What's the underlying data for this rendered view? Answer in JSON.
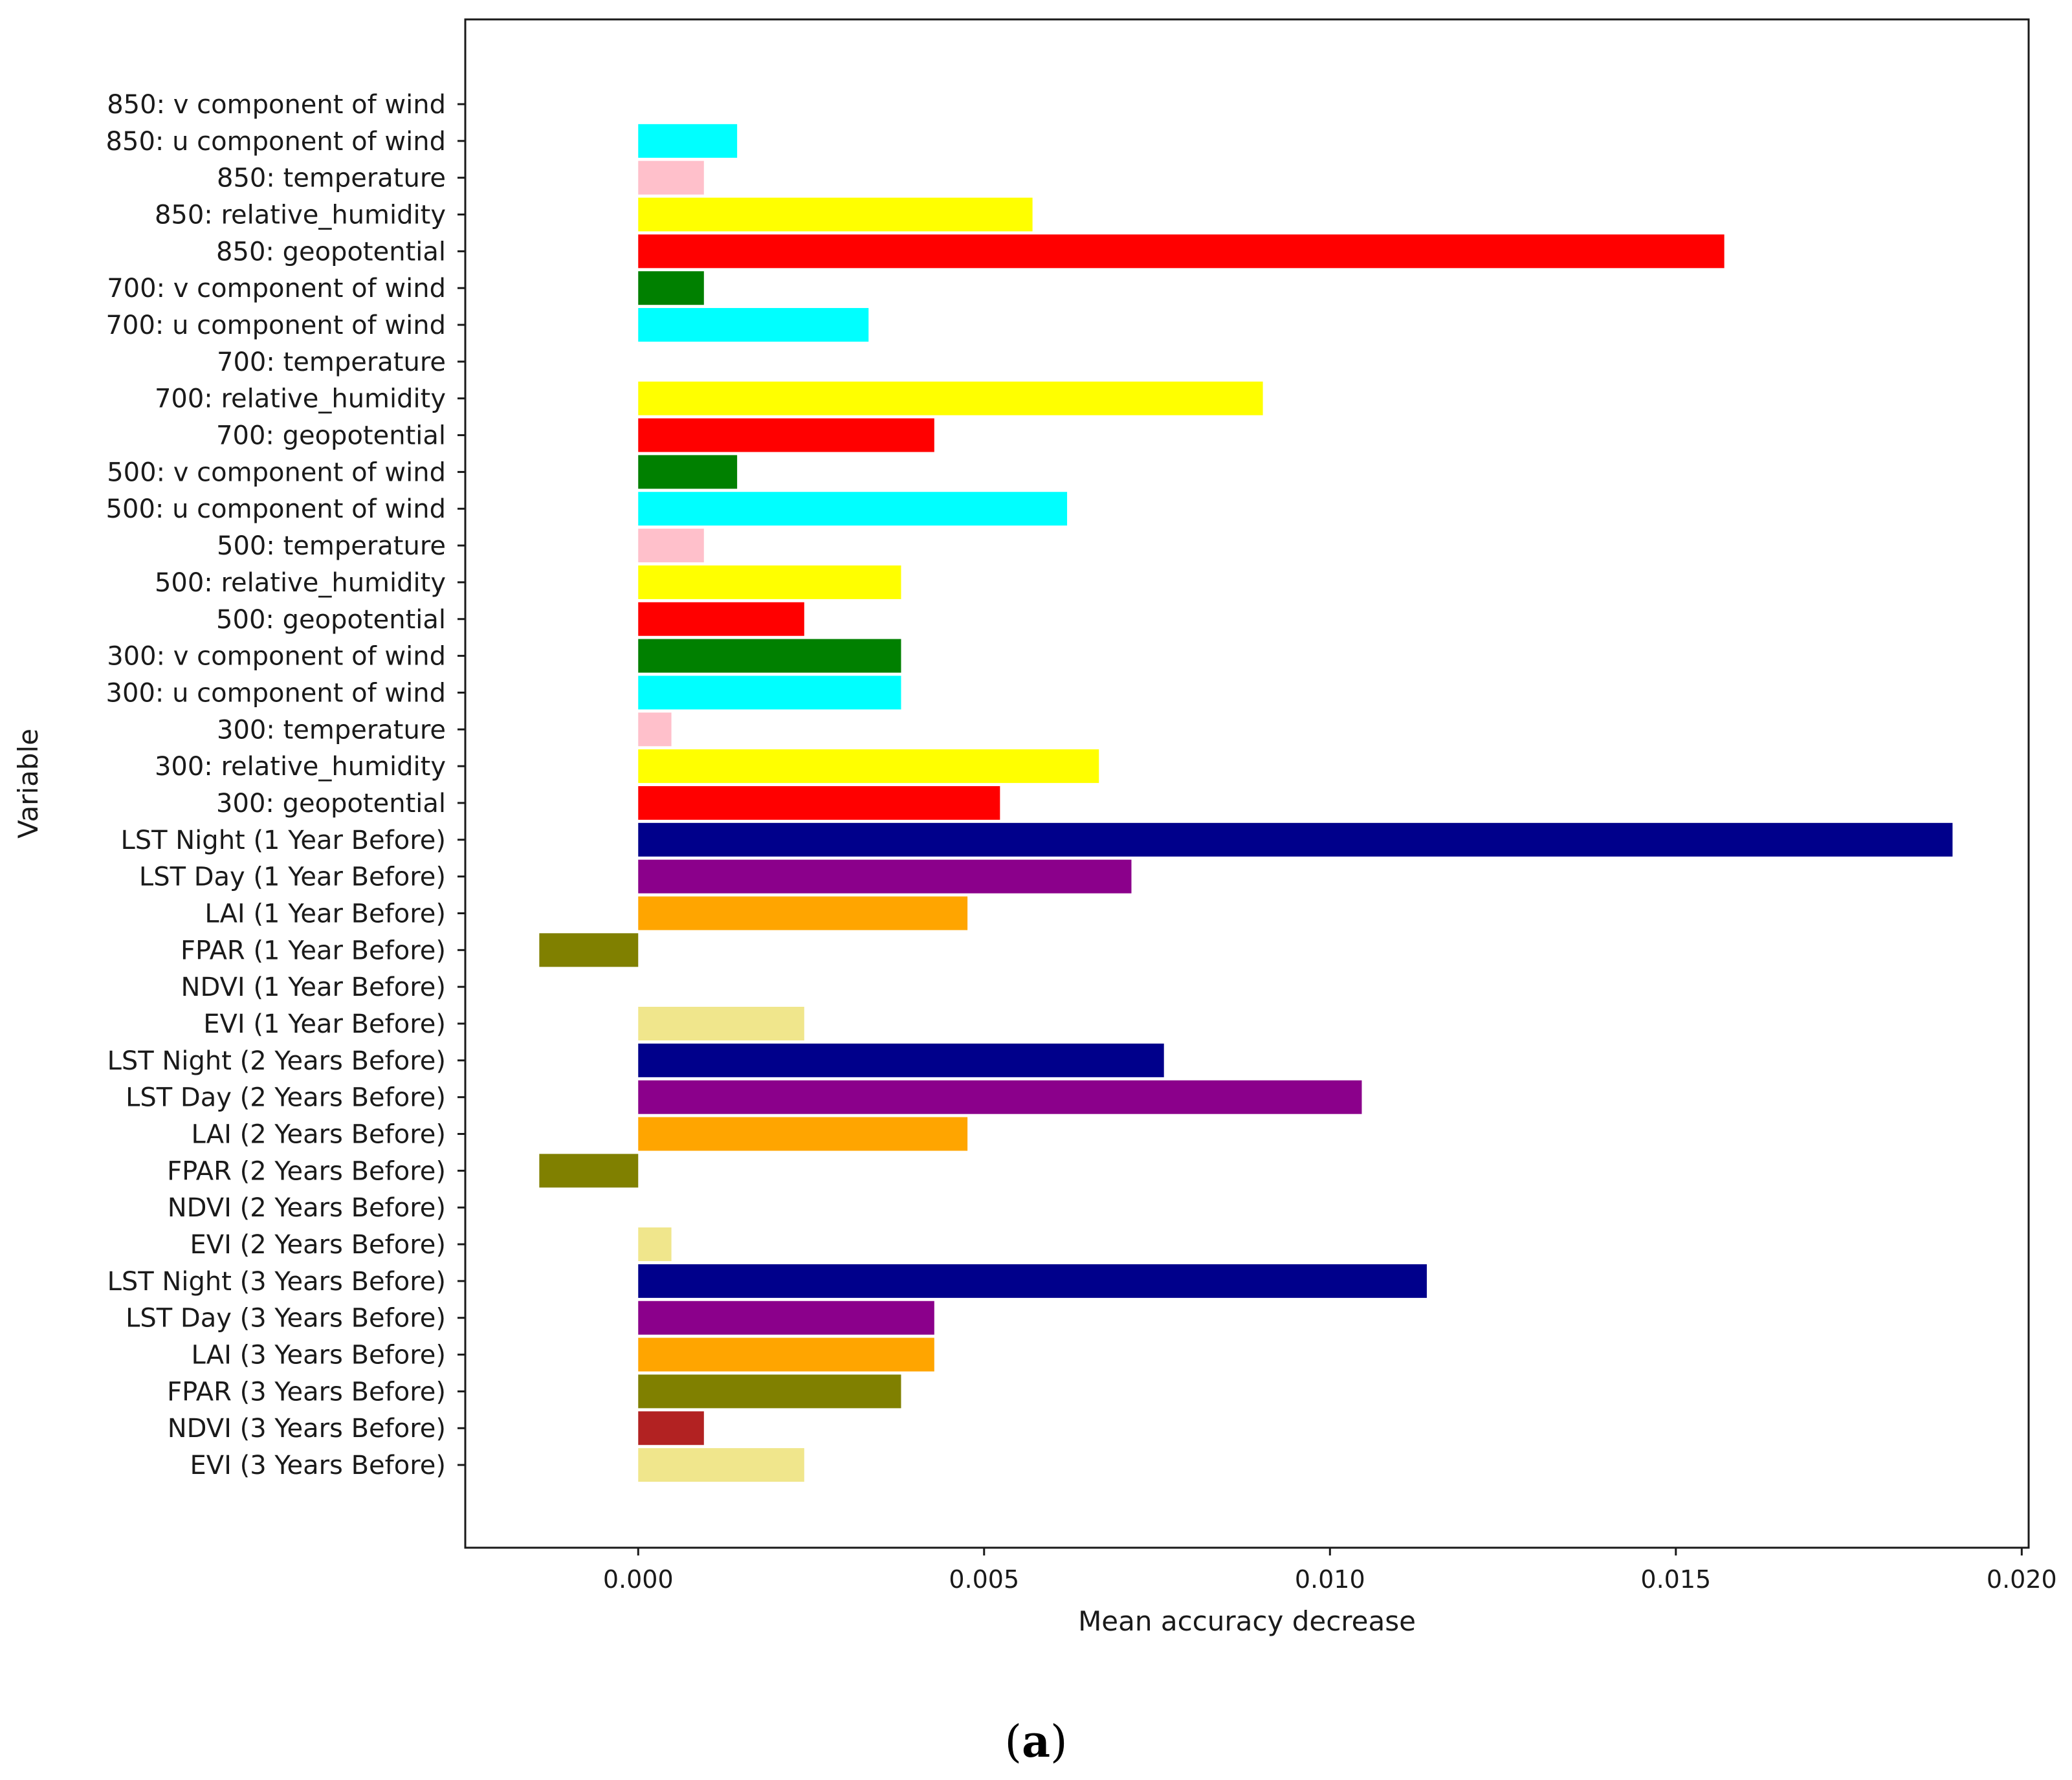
{
  "chart_data": {
    "type": "bar",
    "orientation": "horizontal",
    "title": "",
    "xlabel": "Mean accuracy decrease",
    "ylabel": "Variable",
    "xlim": [
      -0.0025,
      0.0201
    ],
    "xticks": [
      0.0,
      0.005,
      0.01,
      0.015,
      0.02
    ],
    "xtick_labels": [
      "0.000",
      "0.005",
      "0.010",
      "0.015",
      "0.020"
    ],
    "grid": false,
    "categories": [
      "850: v component of wind",
      "850: u component of wind",
      "850: temperature",
      "850: relative_humidity",
      "850: geopotential",
      "700: v component of wind",
      "700: u component of wind",
      "700: temperature",
      "700: relative_humidity",
      "700: geopotential",
      "500: v component of wind",
      "500: u component of wind",
      "500: temperature",
      "500: relative_humidity",
      "500: geopotential",
      "300: v component of wind",
      "300: u component of wind",
      "300: temperature",
      "300: relative_humidity",
      "300: geopotential",
      "LST Night (1 Year Before)",
      "LST Day (1 Year Before)",
      "LAI (1 Year Before)",
      "FPAR (1 Year Before)",
      "NDVI (1 Year Before)",
      "EVI (1 Year Before)",
      "LST Night (2 Years Before)",
      "LST Day (2 Years Before)",
      "LAI (2 Years Before)",
      "FPAR (2 Years Before)",
      "NDVI (2 Years Before)",
      "EVI (2 Years Before)",
      "LST Night (3 Years Before)",
      "LST Day (3 Years Before)",
      "LAI (3 Years Before)",
      "FPAR (3 Years Before)",
      "NDVI (3 Years Before)",
      "EVI (3 Years Before)"
    ],
    "values": [
      0.0,
      0.00143,
      0.00095,
      0.0057,
      0.0157,
      0.00095,
      0.00333,
      0.0,
      0.00903,
      0.00428,
      0.00143,
      0.0062,
      0.00095,
      0.0038,
      0.0024,
      0.0038,
      0.0038,
      0.00048,
      0.00666,
      0.00523,
      0.019,
      0.00713,
      0.00476,
      -0.00143,
      0.0,
      0.0024,
      0.0076,
      0.01046,
      0.00476,
      -0.00143,
      0.0,
      0.00048,
      0.0114,
      0.00428,
      0.00428,
      0.0038,
      0.00095,
      0.0024
    ],
    "colors": [
      "#00ffff",
      "#00ffff",
      "#ffc0cb",
      "#ffff00",
      "#ff0000",
      "#008000",
      "#00ffff",
      "#ffc0cb",
      "#ffff00",
      "#ff0000",
      "#008000",
      "#00ffff",
      "#ffc0cb",
      "#ffff00",
      "#ff0000",
      "#008000",
      "#00ffff",
      "#ffc0cb",
      "#ffff00",
      "#ff0000",
      "#00008b",
      "#8b008b",
      "#ffa500",
      "#808000",
      "#b22222",
      "#f0e68c",
      "#00008b",
      "#8b008b",
      "#ffa500",
      "#808000",
      "#b22222",
      "#f0e68c",
      "#00008b",
      "#8b008b",
      "#ffa500",
      "#808000",
      "#b22222",
      "#f0e68c"
    ]
  },
  "caption": {
    "open": "(",
    "letter": "a",
    "close": ")"
  }
}
